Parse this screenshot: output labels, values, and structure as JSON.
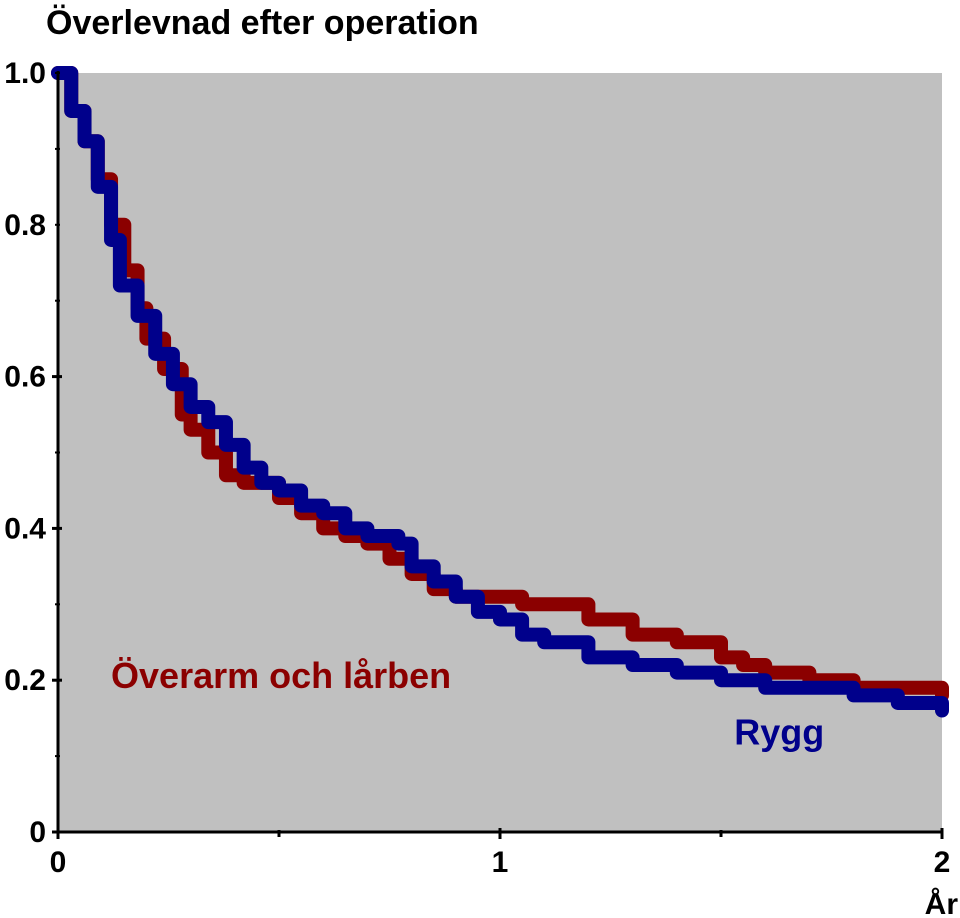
{
  "chart_data": {
    "type": "line",
    "title": "Överlevnad efter operation",
    "xlabel": "År",
    "ylabel": "",
    "xlim": [
      0,
      2
    ],
    "ylim": [
      0,
      1.0
    ],
    "x_ticks": [
      0,
      1,
      2
    ],
    "x_tick_labels": [
      "0",
      "1",
      "2"
    ],
    "y_ticks": [
      0,
      0.2,
      0.4,
      0.6,
      0.8,
      1.0
    ],
    "y_tick_labels": [
      "0",
      "0.2",
      "0.4",
      "0.6",
      "0.8",
      "1.0"
    ],
    "grid": false,
    "plot_background": "#c0c0c0",
    "series": [
      {
        "name": "Överarm och lårben",
        "color": "#8b0000",
        "x": [
          0,
          0.03,
          0.06,
          0.09,
          0.12,
          0.15,
          0.18,
          0.2,
          0.24,
          0.28,
          0.3,
          0.34,
          0.38,
          0.42,
          0.5,
          0.55,
          0.6,
          0.65,
          0.7,
          0.75,
          0.8,
          0.85,
          0.9,
          0.95,
          1.0,
          1.05,
          1.1,
          1.2,
          1.3,
          1.4,
          1.5,
          1.55,
          1.6,
          1.7,
          1.8,
          1.9,
          2.0
        ],
        "values": [
          1.0,
          0.95,
          0.91,
          0.86,
          0.8,
          0.74,
          0.69,
          0.65,
          0.61,
          0.55,
          0.53,
          0.5,
          0.47,
          0.46,
          0.44,
          0.42,
          0.4,
          0.39,
          0.38,
          0.36,
          0.34,
          0.32,
          0.31,
          0.31,
          0.31,
          0.3,
          0.3,
          0.28,
          0.26,
          0.25,
          0.23,
          0.22,
          0.21,
          0.2,
          0.19,
          0.19,
          0.18
        ]
      },
      {
        "name": "Rygg",
        "color": "#00008b",
        "x": [
          0,
          0.03,
          0.06,
          0.09,
          0.12,
          0.14,
          0.18,
          0.22,
          0.26,
          0.3,
          0.34,
          0.38,
          0.42,
          0.46,
          0.5,
          0.55,
          0.6,
          0.65,
          0.7,
          0.77,
          0.8,
          0.85,
          0.9,
          0.95,
          1.0,
          1.05,
          1.1,
          1.2,
          1.3,
          1.4,
          1.5,
          1.6,
          1.7,
          1.8,
          1.9,
          2.0
        ],
        "values": [
          1.0,
          0.95,
          0.91,
          0.85,
          0.78,
          0.72,
          0.68,
          0.63,
          0.59,
          0.56,
          0.54,
          0.51,
          0.48,
          0.46,
          0.45,
          0.43,
          0.42,
          0.4,
          0.39,
          0.38,
          0.35,
          0.33,
          0.31,
          0.29,
          0.28,
          0.26,
          0.25,
          0.23,
          0.22,
          0.21,
          0.2,
          0.19,
          0.19,
          0.18,
          0.17,
          0.16
        ]
      }
    ],
    "annotations": [
      {
        "text": "Överarm och lårben",
        "color": "#8b0000",
        "x": 0.12,
        "y": 0.19
      },
      {
        "text": "Rygg",
        "color": "#00008b",
        "x": 1.53,
        "y": 0.115
      }
    ]
  }
}
